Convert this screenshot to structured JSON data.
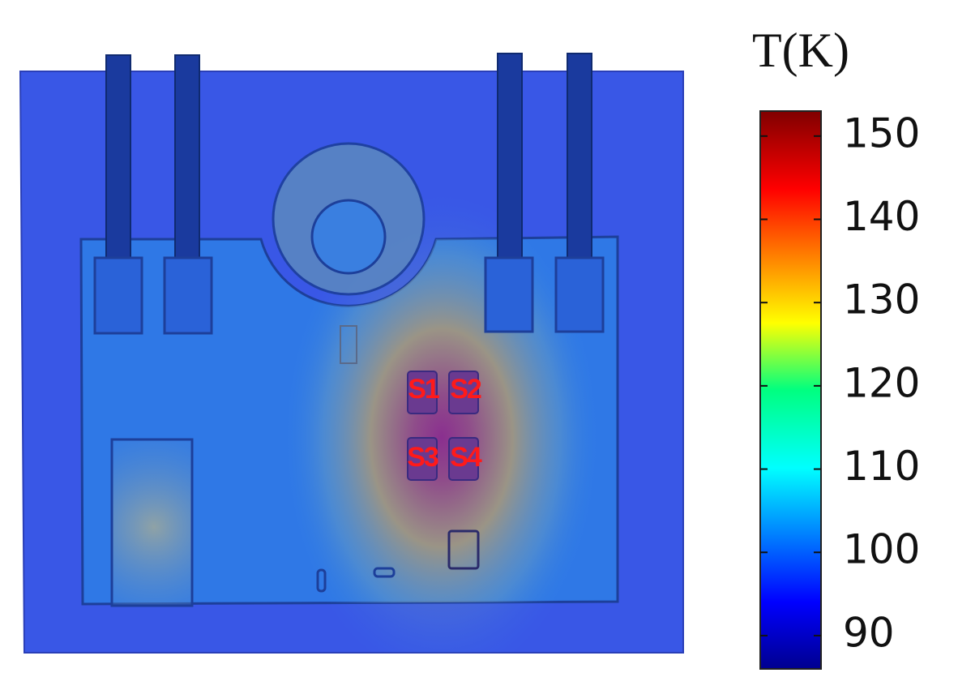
{
  "sensors": [
    "S1",
    "S2",
    "S3",
    "S4"
  ],
  "colorbar": {
    "title": "T(K)",
    "lim": [
      86,
      153
    ],
    "ticks": [
      90,
      100,
      110,
      120,
      130,
      140,
      150
    ]
  }
}
